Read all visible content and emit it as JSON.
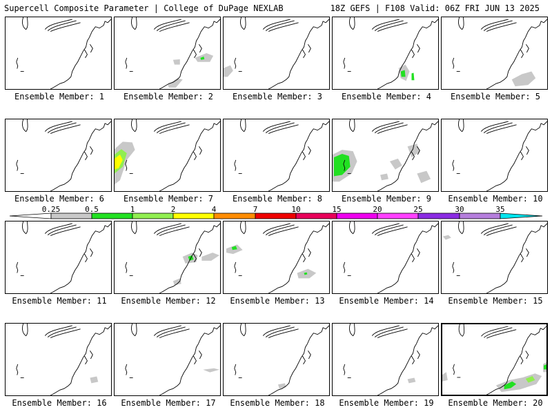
{
  "header": {
    "left": "Supercell Composite Parameter | College of DuPage NEXLAB",
    "right": "18Z GEFS | F108 Valid: 06Z FRI JUN 13 2025"
  },
  "colors": {
    "grey": "#c8c8c8",
    "green": "#22e022",
    "lightgreen": "#90ee50",
    "yellow": "#ffff00",
    "orange": "#ff8c00",
    "red": "#ee0000",
    "crimson": "#e8005a",
    "magenta": "#ee00ee",
    "fuchsia": "#ff40ff",
    "purple": "#8a2be2",
    "violet": "#b57edc",
    "cyan": "#00e5ee"
  },
  "colorbar": {
    "ticks": [
      "0.25",
      "0.5",
      "1",
      "2",
      "4",
      "7",
      "10",
      "15",
      "20",
      "25",
      "30",
      "35"
    ],
    "bins": [
      "grey",
      "green",
      "lightgreen",
      "yellow",
      "orange",
      "red",
      "crimson",
      "magenta",
      "fuchsia",
      "purple",
      "violet"
    ],
    "over_color": "cyan",
    "under_color": "#ffffff"
  },
  "members": [
    {
      "label": "Ensemble Member: 1",
      "blobs": []
    },
    {
      "label": "Ensemble Member: 2",
      "blobs": [
        [
          "grey",
          [
            [
              118,
              60
            ],
            [
              135,
              53
            ],
            [
              145,
              57
            ],
            [
              140,
              66
            ],
            [
              122,
              66
            ]
          ]
        ],
        [
          "green",
          [
            [
              126,
              60
            ],
            [
              131,
              58
            ],
            [
              132,
              62
            ],
            [
              127,
              63
            ]
          ]
        ],
        [
          "grey",
          [
            [
              78,
              100
            ],
            [
              92,
              90
            ],
            [
              100,
              92
            ],
            [
              90,
              104
            ],
            [
              80,
              104
            ]
          ]
        ],
        [
          "grey",
          [
            [
              86,
              63
            ],
            [
              96,
              62
            ],
            [
              96,
              70
            ],
            [
              88,
              70
            ]
          ]
        ]
      ]
    },
    {
      "label": "Ensemble Member: 3",
      "blobs": [
        [
          "grey",
          [
            [
              0,
              75
            ],
            [
              10,
              71
            ],
            [
              14,
              79
            ],
            [
              6,
              88
            ],
            [
              0,
              88
            ]
          ]
        ]
      ]
    },
    {
      "label": "Ensemble Member: 4",
      "blobs": [
        [
          "grey",
          [
            [
              97,
              75
            ],
            [
              107,
              70
            ],
            [
              113,
              80
            ],
            [
              108,
              94
            ],
            [
              100,
              90
            ]
          ]
        ],
        [
          "green",
          [
            [
              100,
              80
            ],
            [
              106,
              78
            ],
            [
              107,
              88
            ],
            [
              101,
              88
            ]
          ]
        ],
        [
          "green",
          [
            [
              116,
              83
            ],
            [
              119,
              82
            ],
            [
              120,
              93
            ],
            [
              116,
              93
            ]
          ]
        ]
      ]
    },
    {
      "label": "Ensemble Member: 5",
      "blobs": [
        [
          "grey",
          [
            [
              103,
              92
            ],
            [
              118,
              84
            ],
            [
              132,
              80
            ],
            [
              138,
              90
            ],
            [
              127,
              100
            ],
            [
              108,
              102
            ]
          ]
        ]
      ]
    },
    {
      "label": "Ensemble Member: 6",
      "blobs": []
    },
    {
      "label": "Ensemble Member: 7",
      "blobs": [
        [
          "grey",
          [
            [
              0,
              44
            ],
            [
              12,
              33
            ],
            [
              26,
              34
            ],
            [
              30,
              45
            ],
            [
              18,
              60
            ],
            [
              8,
              90
            ],
            [
              0,
              96
            ]
          ]
        ],
        [
          "lightgreen",
          [
            [
              0,
              52
            ],
            [
              10,
              44
            ],
            [
              18,
              50
            ],
            [
              12,
              70
            ],
            [
              0,
              80
            ]
          ]
        ],
        [
          "yellow",
          [
            [
              0,
              58
            ],
            [
              8,
              52
            ],
            [
              12,
              60
            ],
            [
              6,
              72
            ],
            [
              0,
              74
            ]
          ]
        ]
      ]
    },
    {
      "label": "Ensemble Member: 8",
      "blobs": []
    },
    {
      "label": "Ensemble Member: 9",
      "blobs": [
        [
          "grey",
          [
            [
              0,
              52
            ],
            [
              14,
              45
            ],
            [
              30,
              47
            ],
            [
              36,
              62
            ],
            [
              28,
              80
            ],
            [
              10,
              92
            ],
            [
              0,
              92
            ]
          ]
        ],
        [
          "green",
          [
            [
              2,
              56
            ],
            [
              14,
              51
            ],
            [
              24,
              54
            ],
            [
              26,
              70
            ],
            [
              14,
              82
            ],
            [
              2,
              84
            ]
          ]
        ],
        [
          "grey",
          [
            [
              84,
              62
            ],
            [
              96,
              58
            ],
            [
              102,
              68
            ],
            [
              92,
              74
            ]
          ]
        ],
        [
          "grey",
          [
            [
              110,
              40
            ],
            [
              124,
              36
            ],
            [
              128,
              48
            ],
            [
              116,
              56
            ]
          ]
        ],
        [
          "grey",
          [
            [
              124,
              80
            ],
            [
              138,
              76
            ],
            [
              144,
              88
            ],
            [
              130,
              94
            ]
          ]
        ],
        [
          "grey",
          [
            [
              70,
              82
            ],
            [
              80,
              80
            ],
            [
              82,
              88
            ],
            [
              72,
              90
            ]
          ]
        ]
      ]
    },
    {
      "label": "Ensemble Member: 10",
      "blobs": []
    },
    {
      "label": "Ensemble Member: 11",
      "blobs": []
    },
    {
      "label": "Ensemble Member: 12",
      "blobs": [
        [
          "grey",
          [
            [
              100,
              52
            ],
            [
              114,
              46
            ],
            [
              122,
              50
            ],
            [
              120,
              60
            ],
            [
              104,
              62
            ]
          ]
        ],
        [
          "green",
          [
            [
              108,
              52
            ],
            [
              114,
              50
            ],
            [
              116,
              56
            ],
            [
              110,
              58
            ]
          ]
        ],
        [
          "grey",
          [
            [
              128,
              52
            ],
            [
              144,
              46
            ],
            [
              154,
              50
            ],
            [
              142,
              58
            ],
            [
              128,
              58
            ]
          ]
        ],
        [
          "grey",
          [
            [
              86,
              88
            ],
            [
              96,
              84
            ],
            [
              98,
              92
            ],
            [
              88,
              94
            ]
          ]
        ]
      ]
    },
    {
      "label": "Ensemble Member: 13",
      "blobs": [
        [
          "grey",
          [
            [
              4,
              40
            ],
            [
              20,
              34
            ],
            [
              28,
              42
            ],
            [
              14,
              48
            ],
            [
              4,
              46
            ]
          ]
        ],
        [
          "green",
          [
            [
              12,
              38
            ],
            [
              18,
              36
            ],
            [
              20,
              41
            ],
            [
              13,
              42
            ]
          ]
        ],
        [
          "grey",
          [
            [
              108,
              76
            ],
            [
              124,
              70
            ],
            [
              136,
              76
            ],
            [
              126,
              84
            ],
            [
              110,
              84
            ]
          ]
        ],
        [
          "green",
          [
            [
              118,
              76
            ],
            [
              122,
              75
            ],
            [
              123,
              78
            ],
            [
              119,
              79
            ]
          ]
        ]
      ]
    },
    {
      "label": "Ensemble Member: 14",
      "blobs": []
    },
    {
      "label": "Ensemble Member: 15",
      "blobs": [
        [
          "grey",
          [
            [
              2,
              22
            ],
            [
              10,
              20
            ],
            [
              14,
              24
            ],
            [
              6,
              27
            ]
          ]
        ]
      ]
    },
    {
      "label": "Ensemble Member: 16",
      "blobs": [
        [
          "grey",
          [
            [
              124,
              80
            ],
            [
              134,
              78
            ],
            [
              136,
              86
            ],
            [
              126,
              88
            ]
          ]
        ]
      ]
    },
    {
      "label": "Ensemble Member: 17",
      "blobs": [
        [
          "grey",
          [
            [
              130,
              68
            ],
            [
              146,
              66
            ],
            [
              154,
              68
            ],
            [
              140,
              72
            ]
          ]
        ]
      ]
    },
    {
      "label": "Ensemble Member: 18",
      "blobs": [
        [
          "grey",
          [
            [
              80,
              90
            ],
            [
              90,
              88
            ],
            [
              92,
              94
            ],
            [
              82,
              96
            ]
          ]
        ]
      ]
    },
    {
      "label": "Ensemble Member: 19",
      "blobs": [
        [
          "grey",
          [
            [
              110,
              82
            ],
            [
              120,
              80
            ],
            [
              122,
              86
            ],
            [
              112,
              88
            ]
          ]
        ]
      ]
    },
    {
      "label": "Ensemble Member: 20",
      "blobs": [
        [
          "grey",
          [
            [
              80,
              92
            ],
            [
              100,
              84
            ],
            [
              120,
              80
            ],
            [
              138,
              74
            ],
            [
              148,
              78
            ],
            [
              140,
              90
            ],
            [
              116,
              98
            ],
            [
              88,
              102
            ]
          ]
        ],
        [
          "green",
          [
            [
              92,
              92
            ],
            [
              104,
              86
            ],
            [
              110,
              90
            ],
            [
              102,
              96
            ],
            [
              92,
              98
            ]
          ]
        ],
        [
          "lightgreen",
          [
            [
              124,
              82
            ],
            [
              134,
              78
            ],
            [
              138,
              84
            ],
            [
              128,
              88
            ]
          ]
        ],
        [
          "grey",
          [
            [
              150,
              60
            ],
            [
              156,
              56
            ],
            [
              156,
              72
            ],
            [
              150,
              72
            ]
          ]
        ],
        [
          "green",
          [
            [
              151,
              62
            ],
            [
              156,
              60
            ],
            [
              156,
              68
            ],
            [
              151,
              68
            ]
          ]
        ],
        [
          "grey",
          [
            [
              0,
              76
            ],
            [
              6,
              72
            ],
            [
              8,
              84
            ],
            [
              0,
              86
            ]
          ]
        ]
      ]
    }
  ]
}
